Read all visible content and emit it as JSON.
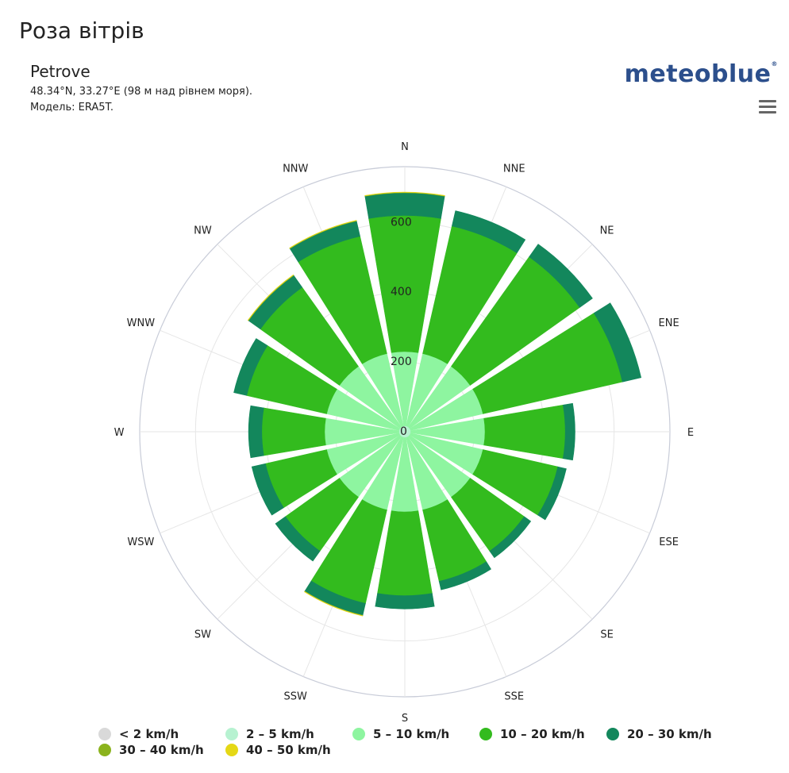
{
  "page": {
    "title": "Роза вітрів"
  },
  "header": {
    "location": "Petrove",
    "coords": "48.34°N, 33.27°E (98 м над рівнем моря).",
    "model": "Модель: ERA5T.",
    "brand": "meteoblue",
    "brand_mark": "®"
  },
  "menu": {
    "icon": "hamburger-menu-icon"
  },
  "chart_data": {
    "type": "wind-rose",
    "directions": [
      "N",
      "NNE",
      "NE",
      "ENE",
      "E",
      "ESE",
      "SE",
      "SSE",
      "S",
      "SSW",
      "SW",
      "WSW",
      "W",
      "WNW",
      "NW",
      "NNW"
    ],
    "radial_ticks": [
      "0",
      "200",
      "400",
      "600"
    ],
    "radial_max": 760,
    "series": [
      {
        "name": "< 2 km/h",
        "color": "#d9d9d9",
        "values": [
          2,
          2,
          2,
          2,
          2,
          2,
          2,
          2,
          2,
          2,
          2,
          2,
          2,
          2,
          2,
          2
        ]
      },
      {
        "name": "2 – 5 km/h",
        "color": "#b7f2d1",
        "values": [
          15,
          15,
          15,
          15,
          15,
          15,
          15,
          15,
          15,
          15,
          15,
          15,
          15,
          15,
          15,
          15
        ]
      },
      {
        "name": "5 – 10 km/h",
        "color": "#8ef5a0",
        "values": [
          213,
          213,
          213,
          213,
          213,
          213,
          213,
          213,
          213,
          213,
          213,
          213,
          213,
          213,
          213,
          213
        ]
      },
      {
        "name": "10 – 20 km/h",
        "color": "#33bb1e",
        "values": [
          390,
          375,
          385,
          410,
          230,
          220,
          190,
          210,
          240,
          275,
          190,
          180,
          180,
          235,
          278,
          345
        ]
      },
      {
        "name": "20 – 30 km/h",
        "color": "#13875c",
        "values": [
          65,
          45,
          45,
          55,
          28,
          25,
          23,
          25,
          38,
          35,
          35,
          40,
          38,
          38,
          42,
          45
        ]
      },
      {
        "name": "30 – 40 km/h",
        "color": "#8bb31d",
        "values": [
          1,
          0,
          0,
          0,
          0,
          0,
          0,
          0,
          0,
          1,
          0,
          0,
          0,
          0,
          1,
          1
        ]
      },
      {
        "name": "40 – 50 km/h",
        "color": "#e5d816",
        "values": [
          1,
          0,
          0,
          0,
          0,
          0,
          0,
          0,
          0,
          1,
          0,
          0,
          0,
          0,
          1,
          1
        ]
      }
    ],
    "legend_placement": "bottom"
  }
}
